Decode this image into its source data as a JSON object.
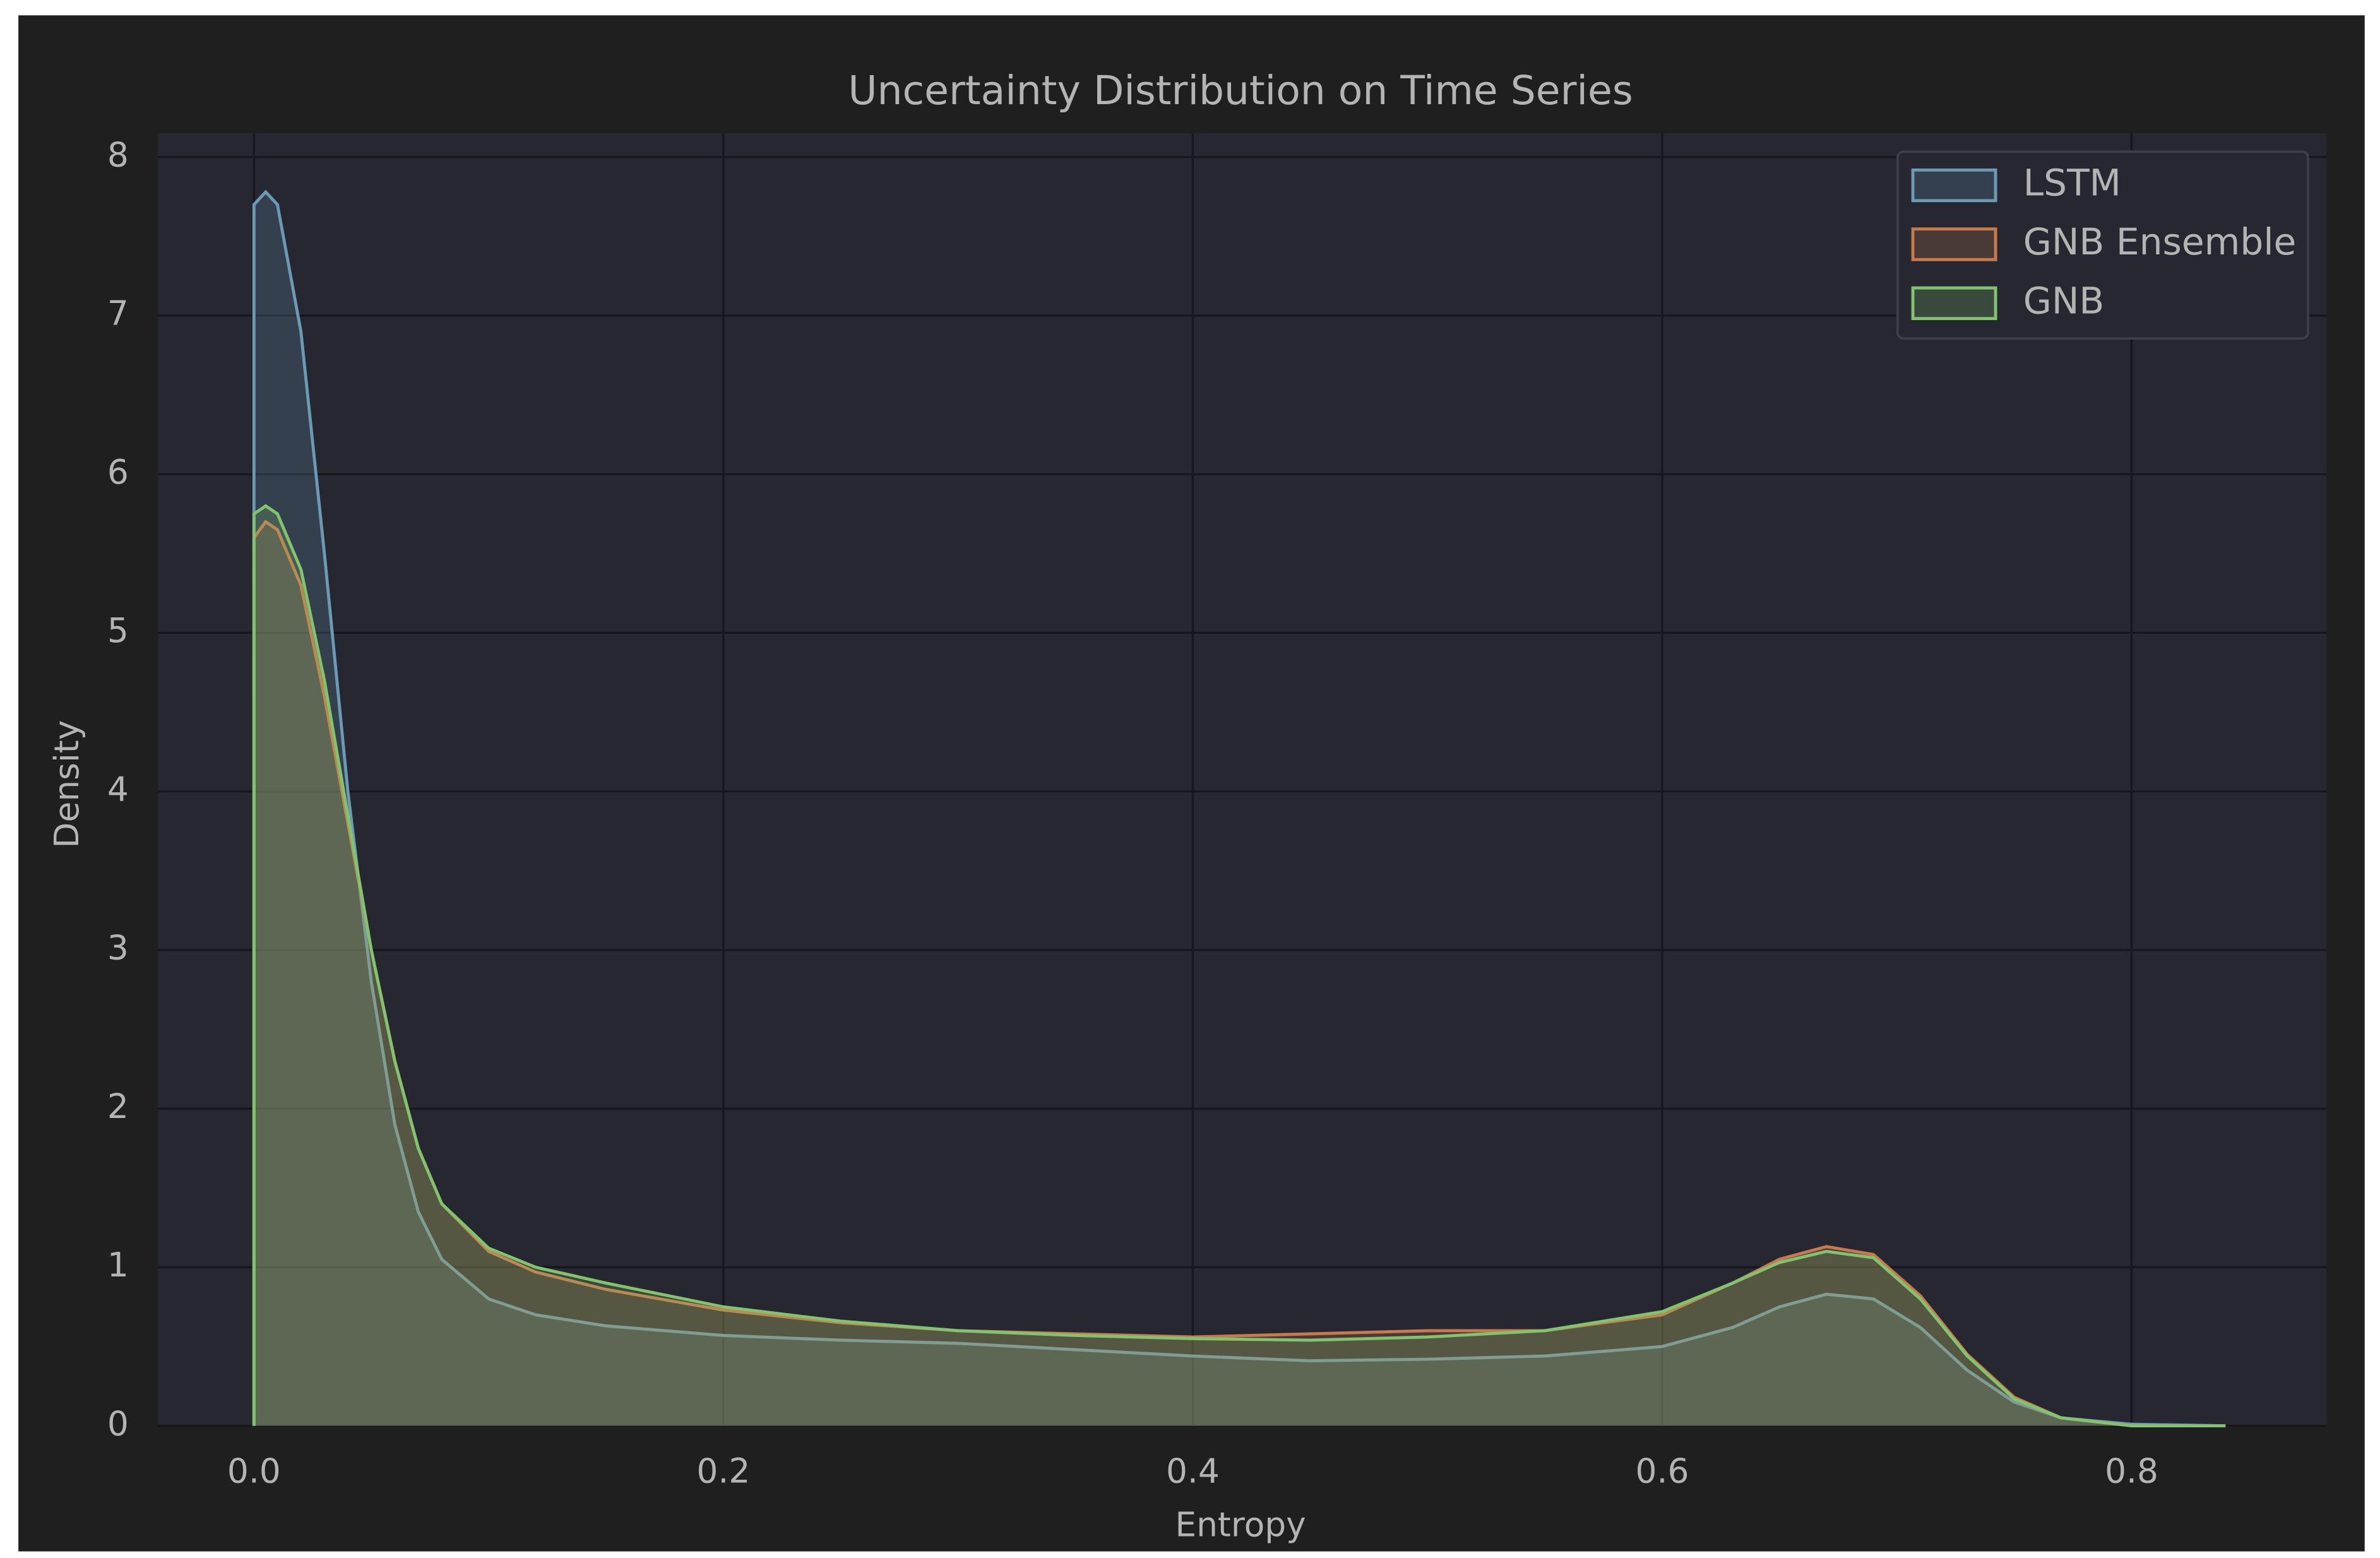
{
  "chart_data": {
    "type": "kde",
    "title": "Uncertainty Distribution on Time Series",
    "x_label": "Entropy",
    "y_label": "Density",
    "x": [
      0,
      0.005,
      0.01,
      0.02,
      0.03,
      0.04,
      0.05,
      0.06,
      0.07,
      0.08,
      0.1,
      0.12,
      0.15,
      0.2,
      0.25,
      0.3,
      0.35,
      0.4,
      0.45,
      0.5,
      0.55,
      0.6,
      0.63,
      0.65,
      0.67,
      0.69,
      0.71,
      0.73,
      0.75,
      0.77,
      0.8,
      0.84
    ],
    "series": [
      {
        "name": "LSTM",
        "color": "#6b9ab5",
        "values": [
          7.7,
          7.78,
          7.7,
          6.9,
          5.5,
          4.0,
          2.8,
          1.9,
          1.35,
          1.05,
          0.8,
          0.7,
          0.63,
          0.57,
          0.54,
          0.52,
          0.48,
          0.44,
          0.41,
          0.42,
          0.44,
          0.5,
          0.62,
          0.75,
          0.83,
          0.8,
          0.62,
          0.35,
          0.15,
          0.05,
          0.01,
          0
        ]
      },
      {
        "name": "GNB Ensemble",
        "color": "#c97a4c",
        "values": [
          5.6,
          5.7,
          5.65,
          5.3,
          4.6,
          3.8,
          3.0,
          2.3,
          1.75,
          1.4,
          1.1,
          0.97,
          0.86,
          0.73,
          0.65,
          0.6,
          0.58,
          0.56,
          0.58,
          0.6,
          0.6,
          0.7,
          0.9,
          1.05,
          1.13,
          1.08,
          0.82,
          0.45,
          0.18,
          0.05,
          0,
          0
        ]
      },
      {
        "name": "GNB",
        "color": "#82c46e",
        "values": [
          5.75,
          5.8,
          5.75,
          5.4,
          4.7,
          3.85,
          3.0,
          2.3,
          1.75,
          1.4,
          1.12,
          1.0,
          0.9,
          0.75,
          0.66,
          0.6,
          0.57,
          0.55,
          0.54,
          0.56,
          0.6,
          0.72,
          0.9,
          1.03,
          1.1,
          1.06,
          0.8,
          0.44,
          0.17,
          0.05,
          0,
          0
        ]
      }
    ],
    "xlim": [
      -0.041,
      0.883
    ],
    "ylim": [
      0,
      8.15
    ],
    "xticks": [
      {
        "value": 0,
        "label": "0.0"
      },
      0.2,
      0.4,
      0.6,
      0.8
    ],
    "yticks": [
      0,
      1,
      2,
      3,
      4,
      5,
      6,
      7,
      8
    ],
    "grid": true,
    "legend": "upper right"
  }
}
